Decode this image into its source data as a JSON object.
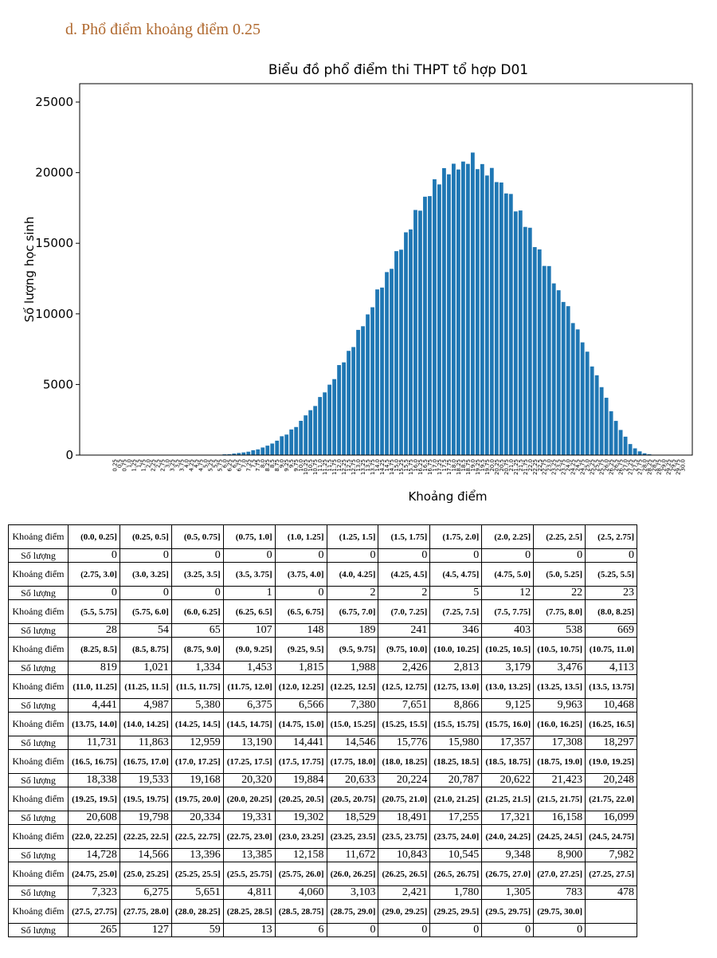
{
  "heading": "d.  Phổ điểm khoảng điểm 0.25",
  "chart_data": {
    "type": "bar",
    "title": "Biểu đồ phổ điểm thi THPT tổ hợp D01",
    "x_label": "Khoảng điểm",
    "y_label": "Số lượng học sinh",
    "color": "#1f77b4",
    "categories": [
      "0.25",
      "0.5",
      "0.75",
      "1.0",
      "1.25",
      "1.5",
      "1.75",
      "2.0",
      "2.25",
      "2.5",
      "2.75",
      "3.0",
      "3.25",
      "3.5",
      "3.75",
      "4.0",
      "4.25",
      "4.5",
      "4.75",
      "5.0",
      "5.25",
      "5.5",
      "5.75",
      "6.0",
      "6.25",
      "6.5",
      "6.75",
      "7.0",
      "7.25",
      "7.5",
      "7.75",
      "8.0",
      "8.25",
      "8.5",
      "8.75",
      "9.0",
      "9.25",
      "9.5",
      "9.75",
      "10.0",
      "10.25",
      "10.5",
      "10.75",
      "11.0",
      "11.25",
      "11.5",
      "11.75",
      "12.0",
      "12.25",
      "12.5",
      "12.75",
      "13.0",
      "13.25",
      "13.5",
      "13.75",
      "14.0",
      "14.25",
      "14.5",
      "14.75",
      "15.0",
      "15.25",
      "15.5",
      "15.75",
      "16.0",
      "16.25",
      "16.5",
      "16.75",
      "17.0",
      "17.25",
      "17.5",
      "17.75",
      "18.0",
      "18.25",
      "18.5",
      "18.75",
      "19.0",
      "19.25",
      "19.5",
      "19.75",
      "20.0",
      "20.25",
      "20.5",
      "20.75",
      "21.0",
      "21.25",
      "21.5",
      "21.75",
      "22.0",
      "22.25",
      "22.5",
      "22.75",
      "23.0",
      "23.25",
      "23.5",
      "23.75",
      "24.0",
      "24.25",
      "24.5",
      "24.75",
      "25.0",
      "25.25",
      "25.5",
      "25.75",
      "26.0",
      "26.25",
      "26.5",
      "26.75",
      "27.0",
      "27.25",
      "27.5",
      "27.75",
      "28.0",
      "28.25",
      "28.5",
      "28.75",
      "29.0",
      "29.25",
      "29.5",
      "29.75",
      "30.0"
    ],
    "values": [
      0,
      0,
      0,
      0,
      0,
      0,
      0,
      0,
      0,
      0,
      0,
      0,
      0,
      0,
      1,
      0,
      2,
      2,
      5,
      12,
      22,
      23,
      28,
      54,
      65,
      107,
      148,
      189,
      241,
      346,
      403,
      538,
      669,
      819,
      1021,
      1334,
      1453,
      1815,
      1988,
      2426,
      2813,
      3179,
      3476,
      4113,
      4441,
      4987,
      5380,
      6375,
      6566,
      7380,
      7651,
      8866,
      9125,
      9963,
      10468,
      11731,
      11863,
      12959,
      13190,
      14441,
      14546,
      15776,
      15980,
      17357,
      17308,
      18297,
      18338,
      19533,
      19168,
      20320,
      19884,
      20633,
      20224,
      20787,
      20622,
      21423,
      20248,
      20608,
      19798,
      20334,
      19331,
      19302,
      18529,
      18491,
      17255,
      17321,
      16158,
      16099,
      14728,
      14566,
      13396,
      13385,
      12158,
      11672,
      10843,
      10545,
      9348,
      8900,
      7982,
      7323,
      6275,
      5651,
      4811,
      4060,
      3103,
      2421,
      1780,
      1305,
      783,
      478,
      265,
      127,
      59,
      13,
      6,
      0,
      0,
      0,
      0,
      0
    ],
    "ylim": [
      0,
      26300
    ],
    "yticks": [
      0,
      5000,
      10000,
      15000,
      20000,
      25000
    ]
  },
  "table": {
    "interval_header": "Khoảng điểm",
    "count_header": "Số lượng",
    "intervals": [
      "(0.0, 0.25]",
      "(0.25, 0.5]",
      "(0.5, 0.75]",
      "(0.75, 1.0]",
      "(1.0, 1.25]",
      "(1.25, 1.5]",
      "(1.5, 1.75]",
      "(1.75, 2.0]",
      "(2.0, 2.25]",
      "(2.25, 2.5]",
      "(2.5, 2.75]",
      "(2.75, 3.0]",
      "(3.0, 3.25]",
      "(3.25, 3.5]",
      "(3.5, 3.75]",
      "(3.75, 4.0]",
      "(4.0, 4.25]",
      "(4.25, 4.5]",
      "(4.5, 4.75]",
      "(4.75, 5.0]",
      "(5.0, 5.25]",
      "(5.25, 5.5]",
      "(5.5, 5.75]",
      "(5.75, 6.0]",
      "(6.0, 6.25]",
      "(6.25, 6.5]",
      "(6.5, 6.75]",
      "(6.75, 7.0]",
      "(7.0, 7.25]",
      "(7.25, 7.5]",
      "(7.5, 7.75]",
      "(7.75, 8.0]",
      "(8.0, 8.25]",
      "(8.25, 8.5]",
      "(8.5, 8.75]",
      "(8.75, 9.0]",
      "(9.0, 9.25]",
      "(9.25, 9.5]",
      "(9.5, 9.75]",
      "(9.75, 10.0]",
      "(10.0, 10.25]",
      "(10.25, 10.5]",
      "(10.5, 10.75]",
      "(10.75, 11.0]",
      "(11.0, 11.25]",
      "(11.25, 11.5]",
      "(11.5, 11.75]",
      "(11.75, 12.0]",
      "(12.0, 12.25]",
      "(12.25, 12.5]",
      "(12.5, 12.75]",
      "(12.75, 13.0]",
      "(13.0, 13.25]",
      "(13.25, 13.5]",
      "(13.5, 13.75]",
      "(13.75, 14.0]",
      "(14.0, 14.25]",
      "(14.25, 14.5]",
      "(14.5, 14.75]",
      "(14.75, 15.0]",
      "(15.0, 15.25]",
      "(15.25, 15.5]",
      "(15.5, 15.75]",
      "(15.75, 16.0]",
      "(16.0, 16.25]",
      "(16.25, 16.5]",
      "(16.5, 16.75]",
      "(16.75, 17.0]",
      "(17.0, 17.25]",
      "(17.25, 17.5]",
      "(17.5, 17.75]",
      "(17.75, 18.0]",
      "(18.0, 18.25]",
      "(18.25, 18.5]",
      "(18.5, 18.75]",
      "(18.75, 19.0]",
      "(19.0, 19.25]",
      "(19.25, 19.5]",
      "(19.5, 19.75]",
      "(19.75, 20.0]",
      "(20.0, 20.25]",
      "(20.25, 20.5]",
      "(20.5, 20.75]",
      "(20.75, 21.0]",
      "(21.0, 21.25]",
      "(21.25, 21.5]",
      "(21.5, 21.75]",
      "(21.75, 22.0]",
      "(22.0, 22.25]",
      "(22.25, 22.5]",
      "(22.5, 22.75]",
      "(22.75, 23.0]",
      "(23.0, 23.25]",
      "(23.25, 23.5]",
      "(23.5, 23.75]",
      "(23.75, 24.0]",
      "(24.0, 24.25]",
      "(24.25, 24.5]",
      "(24.5, 24.75]",
      "(24.75, 25.0]",
      "(25.0, 25.25]",
      "(25.25, 25.5]",
      "(25.5, 25.75]",
      "(25.75, 26.0]",
      "(26.0, 26.25]",
      "(26.25, 26.5]",
      "(26.5, 26.75]",
      "(26.75, 27.0]",
      "(27.0, 27.25]",
      "(27.25, 27.5]",
      "(27.5, 27.75]",
      "(27.75, 28.0]",
      "(28.0, 28.25]",
      "(28.25, 28.5]",
      "(28.5, 28.75]",
      "(28.75, 29.0]",
      "(29.0, 29.25]",
      "(29.25, 29.5]",
      "(29.5, 29.75]",
      "(29.75, 30.0]"
    ],
    "counts": [
      "0",
      "0",
      "0",
      "0",
      "0",
      "0",
      "0",
      "0",
      "0",
      "0",
      "0",
      "0",
      "0",
      "0",
      "1",
      "0",
      "2",
      "2",
      "5",
      "12",
      "22",
      "23",
      "28",
      "54",
      "65",
      "107",
      "148",
      "189",
      "241",
      "346",
      "403",
      "538",
      "669",
      "819",
      "1,021",
      "1,334",
      "1,453",
      "1,815",
      "1,988",
      "2,426",
      "2,813",
      "3,179",
      "3,476",
      "4,113",
      "4,441",
      "4,987",
      "5,380",
      "6,375",
      "6,566",
      "7,380",
      "7,651",
      "8,866",
      "9,125",
      "9,963",
      "10,468",
      "11,731",
      "11,863",
      "12,959",
      "13,190",
      "14,441",
      "14,546",
      "15,776",
      "15,980",
      "17,357",
      "17,308",
      "18,297",
      "18,338",
      "19,533",
      "19,168",
      "20,320",
      "19,884",
      "20,633",
      "20,224",
      "20,787",
      "20,622",
      "21,423",
      "20,248",
      "20,608",
      "19,798",
      "20,334",
      "19,331",
      "19,302",
      "18,529",
      "18,491",
      "17,255",
      "17,321",
      "16,158",
      "16,099",
      "14,728",
      "14,566",
      "13,396",
      "13,385",
      "12,158",
      "11,672",
      "10,843",
      "10,545",
      "9,348",
      "8,900",
      "7,982",
      "7,323",
      "6,275",
      "5,651",
      "4,811",
      "4,060",
      "3,103",
      "2,421",
      "1,780",
      "1,305",
      "783",
      "478",
      "265",
      "127",
      "59",
      "13",
      "6",
      "0",
      "0",
      "0",
      "0",
      "0"
    ]
  }
}
